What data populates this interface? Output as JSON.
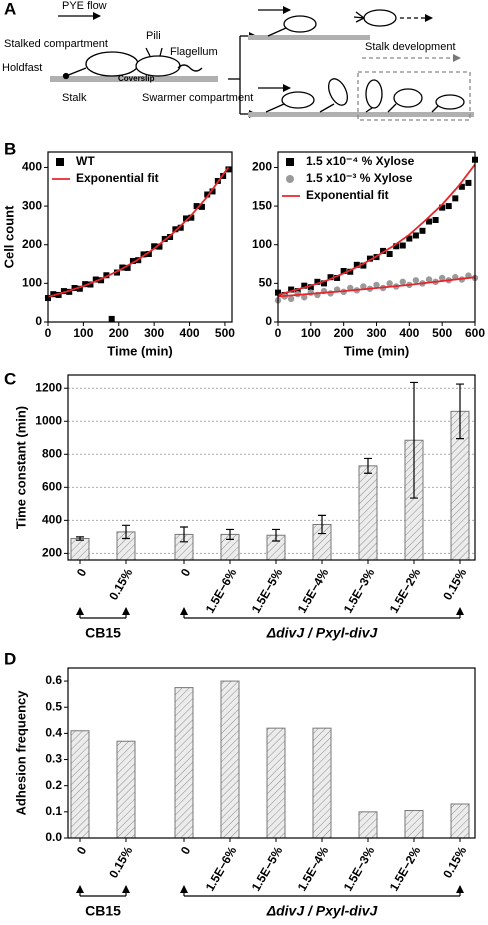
{
  "panel_labels": [
    "A",
    "B",
    "C",
    "D"
  ],
  "diagram": {
    "pye_flow": "PYE flow",
    "stalked_compartment": "Stalked compartment",
    "pili": "Pili",
    "flagellum": "Flagellum",
    "holdfast": "Holdfast",
    "coverslip": "Coverslip",
    "stalk": "Stalk",
    "swarmer_compartment": "Swarmer compartment",
    "stalk_development": "Stalk development"
  },
  "chart_data": [
    {
      "type": "scatter",
      "xlabel": "Time (min)",
      "ylabel": "Cell count",
      "xlim": [
        0,
        520
      ],
      "ylim": [
        0,
        440
      ],
      "xticks": [
        0,
        100,
        200,
        300,
        400,
        500
      ],
      "yticks": [
        0,
        100,
        200,
        300,
        400
      ],
      "legend": "upper left",
      "series": [
        {
          "name": "WT",
          "color": "#000000",
          "marker": "square",
          "x": [
            0,
            15,
            30,
            45,
            60,
            75,
            90,
            105,
            120,
            135,
            150,
            165,
            180,
            195,
            210,
            225,
            240,
            255,
            270,
            285,
            300,
            315,
            330,
            345,
            360,
            375,
            390,
            405,
            420,
            435,
            450,
            465,
            480,
            495,
            510
          ],
          "values": [
            62,
            72,
            70,
            80,
            78,
            88,
            86,
            98,
            97,
            110,
            108,
            121,
            8,
            128,
            141,
            140,
            158,
            160,
            175,
            176,
            196,
            195,
            215,
            220,
            240,
            244,
            268,
            270,
            300,
            298,
            330,
            338,
            365,
            378,
            395
          ]
        },
        {
          "name": "Exponential fit",
          "color": "#e8242b",
          "marker": "line",
          "x": [
            0,
            50,
            100,
            150,
            200,
            250,
            300,
            350,
            400,
            450,
            500,
            510
          ],
          "values": [
            65,
            78,
            93,
            111,
            133,
            159,
            190,
            227,
            271,
            324,
            388,
            400
          ]
        }
      ]
    },
    {
      "type": "scatter",
      "xlabel": "Time (min)",
      "xlim": [
        0,
        600
      ],
      "ylim": [
        0,
        220
      ],
      "xticks": [
        0,
        100,
        200,
        300,
        400,
        500,
        600
      ],
      "yticks": [
        0,
        50,
        100,
        150,
        200
      ],
      "legend": "upper left",
      "series": [
        {
          "name": "1.5 x10⁻⁴ % Xylose",
          "color": "#000000",
          "marker": "square",
          "x": [
            0,
            20,
            40,
            60,
            80,
            100,
            120,
            140,
            160,
            180,
            200,
            220,
            240,
            260,
            280,
            300,
            320,
            340,
            360,
            380,
            400,
            420,
            440,
            460,
            480,
            500,
            520,
            540,
            560,
            580,
            600
          ],
          "values": [
            38,
            35,
            42,
            40,
            47,
            45,
            52,
            50,
            58,
            57,
            66,
            65,
            74,
            73,
            82,
            84,
            92,
            88,
            98,
            99,
            108,
            112,
            118,
            130,
            132,
            148,
            150,
            160,
            175,
            180,
            210
          ]
        },
        {
          "name": "1.5 x10⁻³ % Xylose",
          "color": "#9a9a9a",
          "marker": "circle",
          "x": [
            0,
            20,
            40,
            60,
            80,
            100,
            120,
            140,
            160,
            180,
            200,
            220,
            240,
            260,
            280,
            300,
            320,
            340,
            360,
            380,
            400,
            420,
            440,
            460,
            480,
            500,
            520,
            540,
            560,
            580,
            600
          ],
          "values": [
            28,
            33,
            30,
            36,
            32,
            38,
            35,
            40,
            37,
            42,
            39,
            44,
            41,
            46,
            43,
            48,
            44,
            50,
            46,
            52,
            48,
            54,
            50,
            55,
            52,
            57,
            54,
            58,
            55,
            60,
            57
          ]
        },
        {
          "name": "Exponential fit",
          "color": "#e8242b",
          "marker": "line",
          "x": [
            0,
            50,
            100,
            150,
            200,
            250,
            300,
            350,
            400,
            450,
            500,
            550,
            600
          ],
          "values": [
            35,
            41,
            47,
            54,
            63,
            73,
            85,
            98,
            113,
            132,
            152,
            176,
            204
          ]
        },
        {
          "color": "#e8242b",
          "marker": "line",
          "x": [
            0,
            200,
            400,
            600
          ],
          "values": [
            33,
            40,
            48,
            58
          ]
        }
      ]
    },
    {
      "type": "bar",
      "ylabel": "Time constant (min)",
      "ylim": [
        160,
        1280
      ],
      "yticks": [
        200,
        400,
        600,
        800,
        1000,
        1200
      ],
      "grid": true,
      "color": "#d9d9d9",
      "categories": [
        "0",
        "0.15%",
        "0",
        "1.5E−6%",
        "1.5E−5%",
        "1.5E−4%",
        "1.5E−3%",
        "1.5E−2%",
        "0.15%"
      ],
      "values": [
        290,
        330,
        315,
        315,
        310,
        375,
        730,
        885,
        1060
      ],
      "errors": [
        10,
        40,
        45,
        30,
        35,
        55,
        45,
        350,
        165
      ],
      "groups": [
        {
          "label": "CB15"
        },
        {
          "label": "ΔdivJ / Pxyl-divJ"
        }
      ]
    },
    {
      "type": "bar",
      "ylabel": "Adhesion frequency",
      "ylim": [
        0,
        0.65
      ],
      "grid": false,
      "color": "#d9d9d9",
      "yticks": [
        {
          "value": 0,
          "label": "0.0"
        },
        0.1,
        0.2,
        0.3,
        0.4,
        0.5,
        0.6
      ],
      "categories": [
        "0",
        "0.15%",
        "0",
        "1.5E−6%",
        "1.5E−5%",
        "1.5E−4%",
        "1.5E−3%",
        "1.5E−2%",
        "0.15%"
      ],
      "values": [
        0.41,
        0.37,
        0.575,
        0.6,
        0.42,
        0.42,
        0.1,
        0.105,
        0.13
      ],
      "groups": [
        {
          "label": "CB15"
        },
        {
          "label": "ΔdivJ / Pxyl-divJ"
        }
      ]
    }
  ]
}
